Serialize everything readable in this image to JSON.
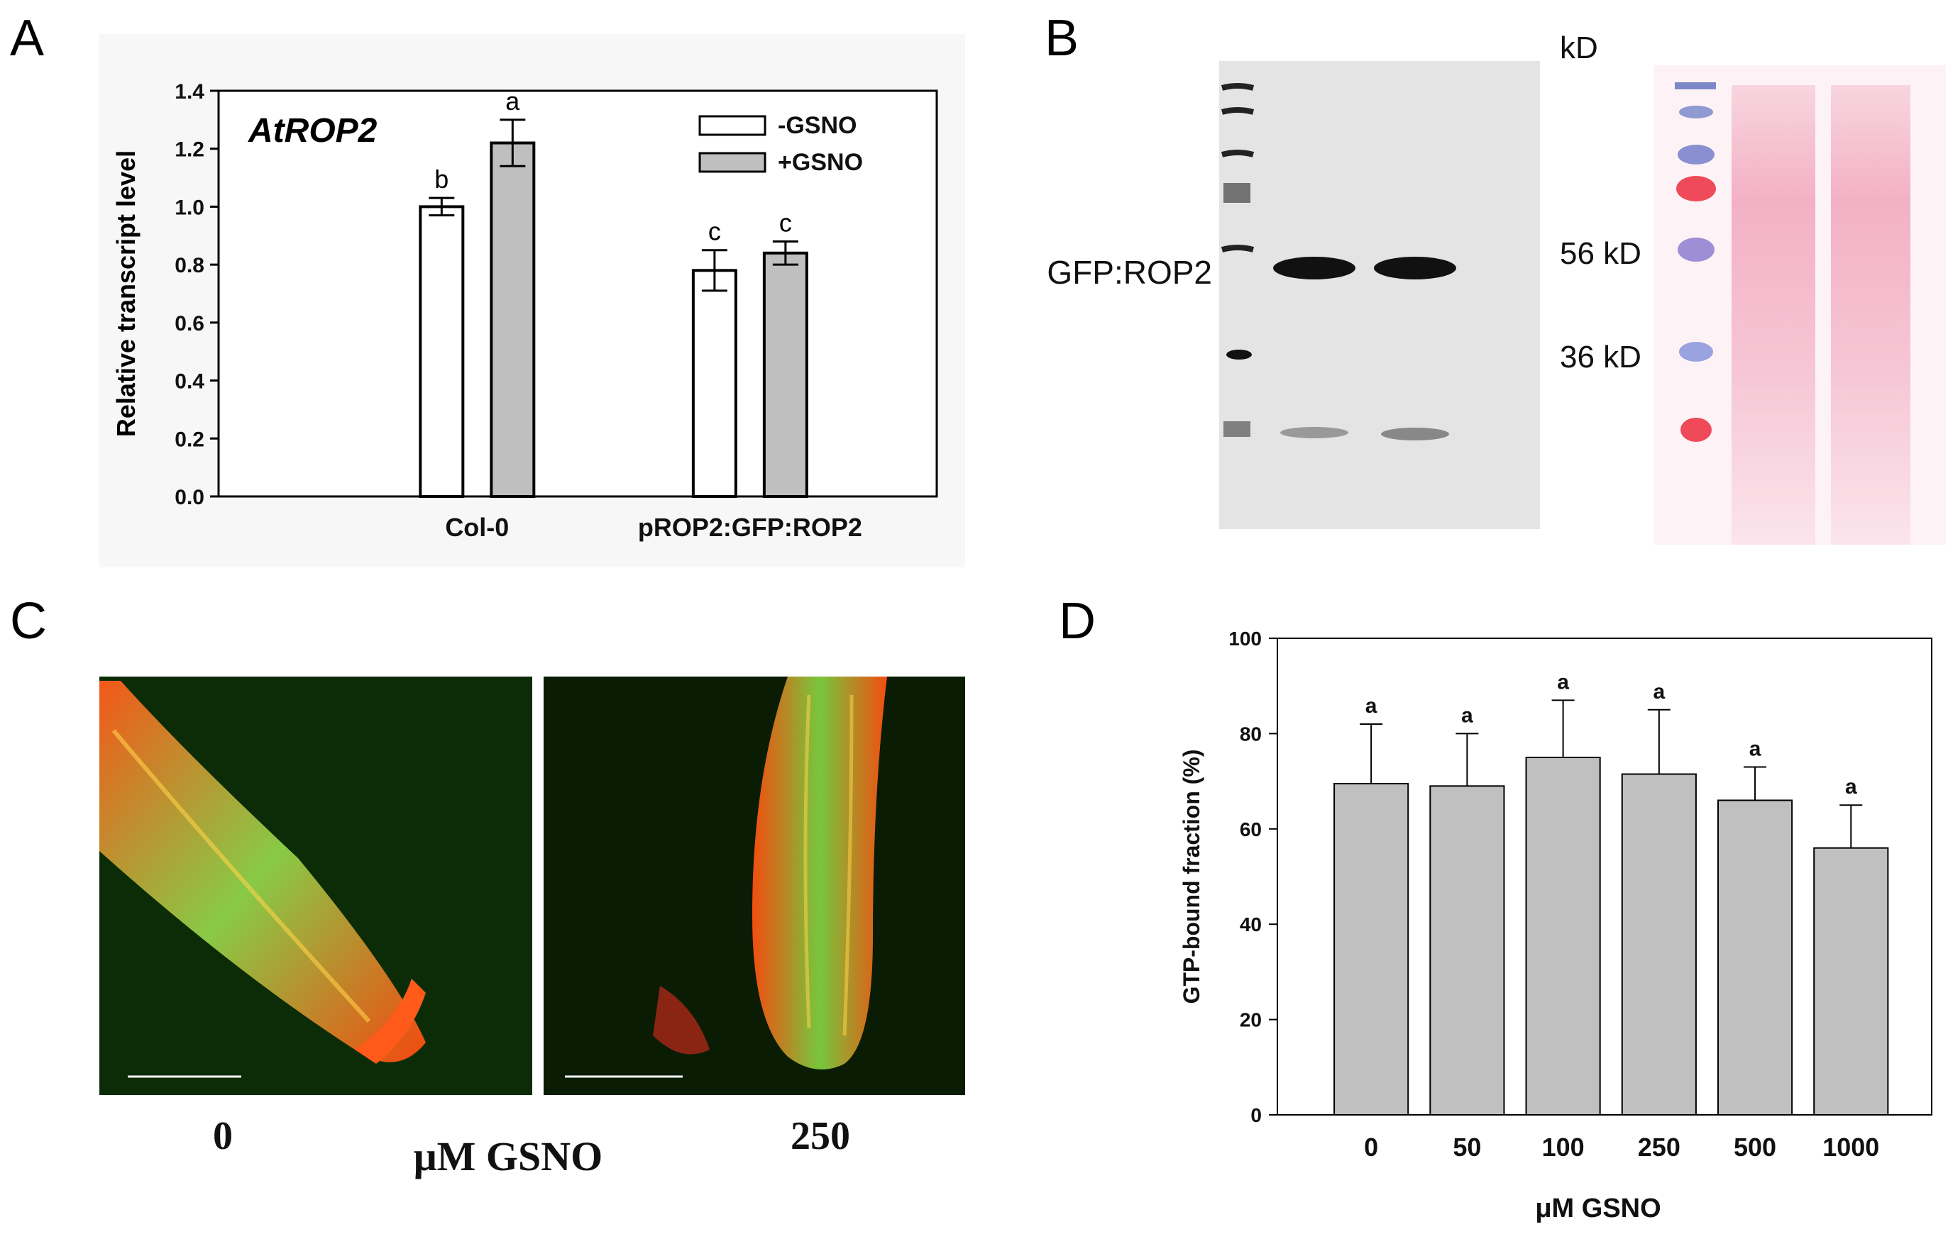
{
  "panels": {
    "a": {
      "letter": "A"
    },
    "b": {
      "letter": "B"
    },
    "c": {
      "letter": "C"
    },
    "d": {
      "letter": "D"
    }
  },
  "chart_data": [
    {
      "type": "bar",
      "panel": "A",
      "title": "AtROP2",
      "ylabel": "Relative transcript level",
      "xlabel": "",
      "ylim": [
        0,
        1.4
      ],
      "yticks": [
        "0.0",
        "0.2",
        "0.4",
        "0.6",
        "0.8",
        "1.0",
        "1.2",
        "1.4"
      ],
      "categories": [
        "Col-0",
        "pROP2:GFP:ROP2"
      ],
      "series": [
        {
          "name": "-GSNO",
          "color": "#ffffff",
          "values": [
            1.0,
            0.78
          ],
          "errors": [
            0.03,
            0.07
          ],
          "letters": [
            "b",
            "c"
          ]
        },
        {
          "name": "+GSNO",
          "color": "#bfbfbf",
          "values": [
            1.22,
            0.84
          ],
          "errors": [
            0.08,
            0.04
          ],
          "letters": [
            "a",
            "c"
          ]
        }
      ],
      "legend": "top-right",
      "grid": false
    },
    {
      "type": "bar",
      "panel": "D",
      "xlabel": "μM GSNO",
      "ylabel": "GTP-bound fraction (%)",
      "ylim": [
        0,
        100
      ],
      "yticks": [
        "0",
        "20",
        "40",
        "60",
        "80",
        "100"
      ],
      "categories": [
        "0",
        "50",
        "100",
        "250",
        "500",
        "1000"
      ],
      "values": [
        69.5,
        69,
        75,
        71.5,
        66,
        56
      ],
      "errors": [
        12.5,
        11,
        12,
        13.5,
        7,
        9
      ],
      "letters": [
        "a",
        "a",
        "a",
        "a",
        "a",
        "a"
      ],
      "bar_color": "#c0c0c0",
      "grid": false
    }
  ],
  "blot": {
    "band_label": "GFP:ROP2",
    "unit_label": "kD",
    "markers": [
      "56 kD",
      "36 kD"
    ],
    "membrane_color": "#e6e6e6",
    "stain_color": "#f4b6c8"
  },
  "micrographs": {
    "left_label": "0",
    "right_label": "250",
    "axis_label": "μM GSNO",
    "background_color": "#0a2a06"
  }
}
